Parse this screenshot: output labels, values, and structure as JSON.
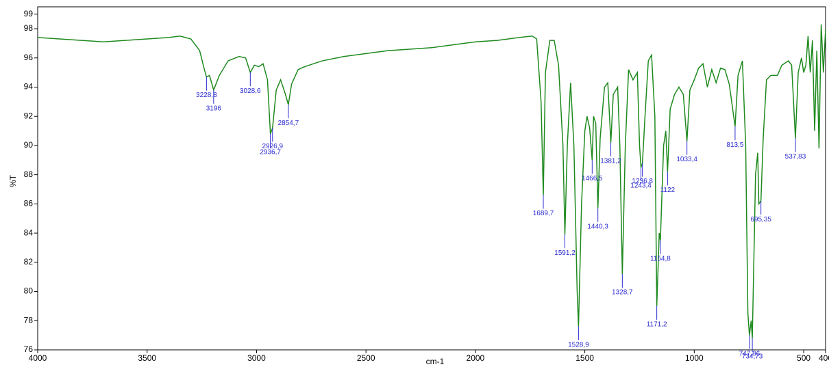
{
  "chart_data": {
    "type": "line",
    "x_label": "cm-1",
    "y_label": "%T",
    "xlim": [
      4000,
      400
    ],
    "ylim": [
      76,
      99.5
    ],
    "xticks": [
      4000,
      3500,
      3000,
      2500,
      2000,
      1500,
      1000,
      500,
      400
    ],
    "yticks": [
      76,
      78,
      80,
      82,
      84,
      86,
      88,
      90,
      92,
      94,
      96,
      98,
      99
    ],
    "series": [
      {
        "color": "#1e8a1e",
        "x": [
          4000,
          3800,
          3700,
          3600,
          3500,
          3400,
          3350,
          3300,
          3260,
          3240,
          3228.8,
          3215,
          3196,
          3170,
          3130,
          3080,
          3050,
          3028.6,
          3010,
          2990,
          2970,
          2950,
          2936.7,
          2926.9,
          2910,
          2890,
          2870,
          2854.7,
          2840,
          2810,
          2780,
          2700,
          2600,
          2500,
          2400,
          2300,
          2200,
          2100,
          2000,
          1900,
          1800,
          1740,
          1720,
          1700,
          1689.7,
          1680,
          1660,
          1640,
          1620,
          1600,
          1591.2,
          1580,
          1565,
          1550,
          1535,
          1528.9,
          1515,
          1500,
          1490,
          1478,
          1466.5,
          1460,
          1450,
          1440.3,
          1430,
          1410,
          1395,
          1381.2,
          1370,
          1350,
          1340,
          1328.7,
          1315,
          1300,
          1280,
          1260,
          1250,
          1243.4,
          1236.8,
          1225,
          1210,
          1195,
          1180,
          1171.2,
          1160,
          1154.8,
          1140,
          1130,
          1122,
          1110,
          1090,
          1070,
          1050,
          1033.4,
          1020,
          1000,
          980,
          960,
          940,
          920,
          900,
          880,
          860,
          840,
          813.5,
          800,
          780,
          765,
          755,
          747.86,
          740,
          734.73,
          720,
          710,
          705,
          695.35,
          685,
          670,
          650,
          620,
          600,
          570,
          555,
          537.83,
          525,
          510,
          500,
          490,
          480,
          470,
          460,
          450,
          440,
          430,
          420,
          410,
          400
        ],
        "values": [
          97.4,
          97.2,
          97.1,
          97.2,
          97.3,
          97.4,
          97.5,
          97.3,
          96.5,
          95.3,
          94.7,
          94.8,
          93.8,
          94.8,
          95.8,
          96.1,
          96.0,
          95.0,
          95.5,
          95.4,
          95.6,
          94.5,
          90.8,
          91.2,
          93.8,
          94.5,
          93.6,
          92.8,
          94.2,
          95.2,
          95.4,
          95.8,
          96.1,
          96.3,
          96.5,
          96.6,
          96.7,
          96.9,
          97.1,
          97.2,
          97.4,
          97.5,
          97.3,
          93.0,
          86.6,
          95.0,
          97.2,
          97.2,
          95.5,
          90.0,
          83.9,
          90.0,
          94.3,
          90.0,
          80.0,
          77.6,
          86.0,
          91.0,
          92.0,
          91.2,
          89.0,
          92.0,
          91.5,
          85.7,
          90.5,
          94.0,
          94.3,
          90.2,
          93.5,
          94.0,
          90.0,
          81.2,
          90.0,
          95.2,
          94.5,
          95.0,
          90.0,
          88.5,
          88.8,
          92.0,
          95.8,
          96.2,
          92.0,
          79.0,
          84.0,
          83.5,
          90.0,
          91.0,
          88.2,
          92.5,
          93.5,
          94.0,
          93.5,
          90.3,
          93.8,
          94.5,
          95.3,
          95.6,
          94.0,
          95.2,
          94.3,
          95.3,
          95.2,
          94.2,
          91.3,
          94.8,
          95.8,
          90.0,
          78.5,
          77.0,
          78.0,
          76.8,
          88.0,
          89.5,
          86.0,
          86.2,
          90.5,
          94.5,
          94.8,
          94.8,
          95.5,
          95.8,
          95.5,
          90.5,
          95.0,
          96.0,
          95.0,
          95.5,
          97.5,
          95.0,
          97.2,
          91.0,
          96.5,
          89.8,
          98.3,
          95.0,
          98.0
        ]
      }
    ],
    "peak_color": "#2a2ad0",
    "peaks": [
      {
        "value": 3228.8,
        "label": "3228,8",
        "y": 94.7
      },
      {
        "value": 3196,
        "label": "3196",
        "y": 93.8
      },
      {
        "value": 3028.6,
        "label": "3028,6",
        "y": 95.0
      },
      {
        "value": 2926.9,
        "label": "2926,9",
        "y": 91.2
      },
      {
        "value": 2936.7,
        "label": "2936,7",
        "y": 90.8
      },
      {
        "value": 2854.7,
        "label": "2854,7",
        "y": 92.8
      },
      {
        "value": 1689.7,
        "label": "1689,7",
        "y": 86.6
      },
      {
        "value": 1591.2,
        "label": "1591,2",
        "y": 83.9
      },
      {
        "value": 1528.9,
        "label": "1528,9",
        "y": 77.6
      },
      {
        "value": 1466.5,
        "label": "1466,5",
        "y": 89.0
      },
      {
        "value": 1440.3,
        "label": "1440,3",
        "y": 85.7
      },
      {
        "value": 1381.2,
        "label": "1381,2",
        "y": 90.2
      },
      {
        "value": 1328.7,
        "label": "1328,7",
        "y": 81.2
      },
      {
        "value": 1243.4,
        "label": "1243,4",
        "y": 88.5
      },
      {
        "value": 1236.8,
        "label": "1236,8",
        "y": 88.8
      },
      {
        "value": 1171.2,
        "label": "1171,2",
        "y": 79.0
      },
      {
        "value": 1154.8,
        "label": "1154,8",
        "y": 83.5
      },
      {
        "value": 1122,
        "label": "1122",
        "y": 88.2
      },
      {
        "value": 1033.4,
        "label": "1033,4",
        "y": 90.3
      },
      {
        "value": 813.5,
        "label": "813,5",
        "y": 91.3
      },
      {
        "value": 747.86,
        "label": "747,86",
        "y": 77.0
      },
      {
        "value": 734.73,
        "label": "734,73",
        "y": 76.8
      },
      {
        "value": 695.35,
        "label": "695,35",
        "y": 86.2
      },
      {
        "value": 537.83,
        "label": "537,83",
        "y": 90.5
      }
    ]
  }
}
